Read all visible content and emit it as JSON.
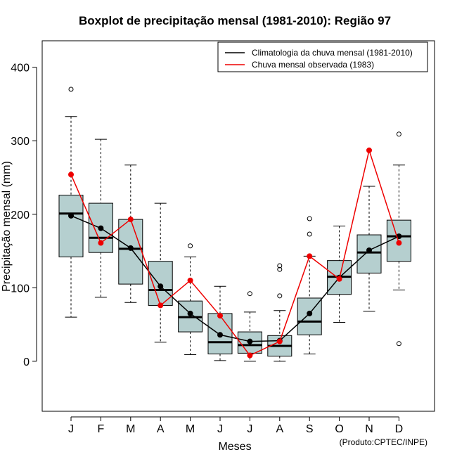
{
  "chart_data": {
    "type": "boxplot",
    "title": "Boxplot de precipitação mensal (1981-2010): Região 97",
    "xlabel": "Meses",
    "ylabel": "Precipitação mensal (mm)",
    "ylim": [
      -68,
      436
    ],
    "yticks": [
      0,
      100,
      200,
      300,
      400
    ],
    "categories": [
      "J",
      "F",
      "M",
      "A",
      "M",
      "J",
      "J",
      "A",
      "S",
      "O",
      "N",
      "D"
    ],
    "box_color": "#b5cfcf",
    "boxes": [
      {
        "whisker_low": 60,
        "q1": 142,
        "median": 201,
        "q3": 226,
        "whisker_high": 333,
        "outliers": [
          370
        ]
      },
      {
        "whisker_low": 87,
        "q1": 148,
        "median": 168,
        "q3": 215,
        "whisker_high": 302,
        "outliers": []
      },
      {
        "whisker_low": 80,
        "q1": 105,
        "median": 153,
        "q3": 193,
        "whisker_high": 267,
        "outliers": []
      },
      {
        "whisker_low": 26,
        "q1": 76,
        "median": 97,
        "q3": 136,
        "whisker_high": 215,
        "outliers": []
      },
      {
        "whisker_low": 9,
        "q1": 40,
        "median": 60,
        "q3": 82,
        "whisker_high": 142,
        "outliers": [
          157
        ]
      },
      {
        "whisker_low": 1,
        "q1": 10,
        "median": 26,
        "q3": 65,
        "whisker_high": 102,
        "outliers": []
      },
      {
        "whisker_low": 0,
        "q1": 11,
        "median": 22,
        "q3": 40,
        "whisker_high": 67,
        "outliers": [
          92
        ]
      },
      {
        "whisker_low": 0,
        "q1": 7,
        "median": 21,
        "q3": 35,
        "whisker_high": 69,
        "outliers": [
          89,
          125,
          130
        ]
      },
      {
        "whisker_low": 10,
        "q1": 36,
        "median": 54,
        "q3": 86,
        "whisker_high": 143,
        "outliers": [
          173,
          194
        ]
      },
      {
        "whisker_low": 53,
        "q1": 91,
        "median": 115,
        "q3": 137,
        "whisker_high": 184,
        "outliers": []
      },
      {
        "whisker_low": 68,
        "q1": 120,
        "median": 148,
        "q3": 172,
        "whisker_high": 238,
        "outliers": []
      },
      {
        "whisker_low": 97,
        "q1": 136,
        "median": 170,
        "q3": 192,
        "whisker_high": 267,
        "outliers": [
          24,
          309
        ]
      }
    ],
    "series": [
      {
        "name": "Climatologia da chuva mensal (1981-2010)",
        "color": "#000000",
        "values": [
          198,
          181,
          154,
          102,
          65,
          36,
          27,
          28,
          65,
          114,
          151,
          170
        ]
      },
      {
        "name": "Chuva mensal observada (1983)",
        "color": "#ee0000",
        "values": [
          254,
          161,
          193,
          76,
          110,
          62,
          8,
          27,
          143,
          112,
          287,
          161
        ]
      }
    ],
    "legend_position": "top-right",
    "credit": "(Produto:CPTEC/INPE)"
  }
}
